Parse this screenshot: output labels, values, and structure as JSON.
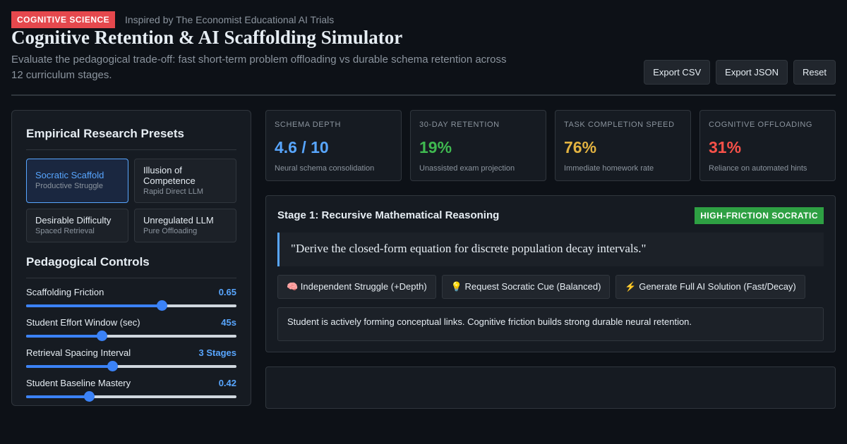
{
  "header": {
    "badge": "COGNITIVE SCIENCE",
    "credit": "Inspired by The Economist Educational AI Trials",
    "title": "Cognitive Retention & AI Scaffolding Simulator",
    "subtitle": "Evaluate the pedagogical trade-off: fast short-term problem offloading vs durable schema retention across 12 curriculum stages.",
    "buttons": [
      "Export CSV",
      "Export JSON",
      "Reset"
    ]
  },
  "presets": {
    "title": "Empirical Research Presets",
    "items": [
      {
        "name": "Socratic Scaffold",
        "sub": "Productive Struggle"
      },
      {
        "name": "Illusion of Competence",
        "sub": "Rapid Direct LLM"
      },
      {
        "name": "Desirable Difficulty",
        "sub": "Spaced Retrieval"
      },
      {
        "name": "Unregulated LLM",
        "sub": "Pure Offloading"
      }
    ]
  },
  "controls": {
    "title": "Pedagogical Controls",
    "sliders": [
      {
        "label": "Scaffolding Friction",
        "value": "0.65"
      },
      {
        "label": "Student Effort Window (sec)",
        "value": "45s"
      },
      {
        "label": "Retrieval Spacing Interval",
        "value": "3 Stages"
      },
      {
        "label": "Student Baseline Mastery",
        "value": "0.42"
      }
    ]
  },
  "metrics": [
    {
      "label": "SCHEMA DEPTH",
      "value": "4.6 / 10",
      "note": "Neural schema consolidation"
    },
    {
      "label": "30-DAY RETENTION",
      "value": "19%",
      "note": "Unassisted exam projection"
    },
    {
      "label": "TASK COMPLETION SPEED",
      "value": "76%",
      "note": "Immediate homework rate"
    },
    {
      "label": "COGNITIVE OFFLOADING",
      "value": "31%",
      "note": "Reliance on automated hints"
    }
  ],
  "stage": {
    "title": "Stage 1: Recursive Mathematical Reasoning",
    "badge": "HIGH-FRICTION SOCRATIC",
    "prompt": "\"Derive the closed-form equation for discrete population decay intervals.\"",
    "actions": [
      "🧠 Independent Struggle (+Depth)",
      "💡 Request Socratic Cue (Balanced)",
      "⚡ Generate Full AI Solution (Fast/Decay)"
    ],
    "feedback": "Student is actively forming conceptual links. Cognitive friction builds strong durable neural retention."
  }
}
